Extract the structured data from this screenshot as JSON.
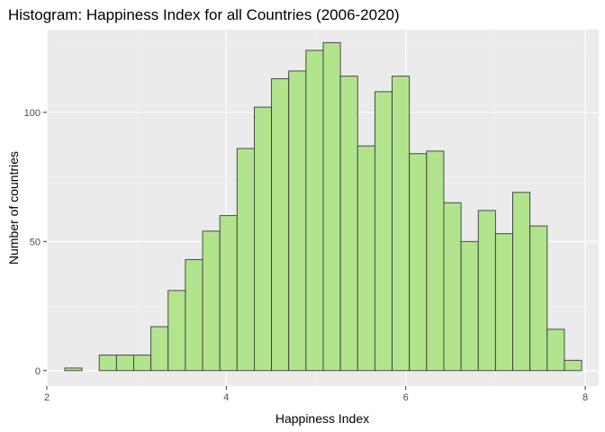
{
  "chart_data": {
    "type": "bar",
    "title": "Histogram: Happiness Index for all Countries (2006-2020)",
    "xlabel": "Happiness Index",
    "ylabel": "Number of countries",
    "xlim": [
      2.0,
      8.15
    ],
    "ylim": [
      -6,
      132
    ],
    "x_major_ticks": [
      2,
      4,
      6,
      8
    ],
    "x_minor_ticks": [
      3,
      5,
      7
    ],
    "y_major_ticks": [
      0,
      50,
      100
    ],
    "y_minor_ticks": [
      25,
      75,
      125
    ],
    "bin_start": 2.2,
    "bin_width": 0.192,
    "values": [
      1,
      0,
      6,
      6,
      6,
      17,
      31,
      43,
      54,
      60,
      86,
      102,
      113,
      116,
      124,
      127,
      114,
      87,
      108,
      114,
      84,
      85,
      65,
      50,
      62,
      53,
      69,
      56,
      16,
      4
    ],
    "colors": {
      "bar_fill": "#b1e48c",
      "bar_stroke": "#3a3a3a",
      "panel": "#ebebeb",
      "grid": "#ffffff"
    }
  }
}
